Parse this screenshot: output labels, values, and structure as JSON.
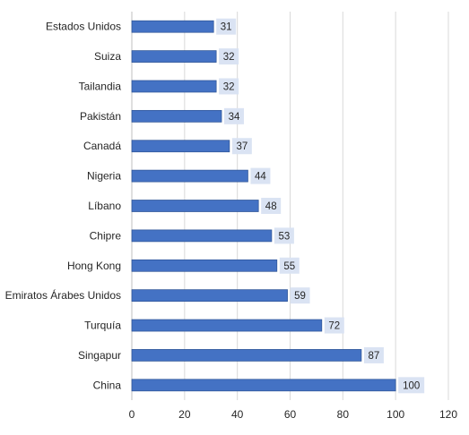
{
  "chart_data": {
    "type": "bar",
    "orientation": "horizontal",
    "categories": [
      "Estados Unidos",
      "Suiza",
      "Tailandia",
      "Pakistán",
      "Canadá",
      "Nigeria",
      "Líbano",
      "Chipre",
      "Hong Kong",
      "Emiratos Árabes Unidos",
      "Turquía",
      "Singapur",
      "China"
    ],
    "values": [
      31,
      32,
      32,
      34,
      37,
      44,
      48,
      53,
      55,
      59,
      72,
      87,
      100
    ],
    "data_labels": [
      "31",
      "32",
      "32",
      "34",
      "37",
      "44",
      "48",
      "53",
      "55",
      "59",
      "72",
      "87",
      "100"
    ],
    "x_ticks": [
      "0",
      "20",
      "40",
      "60",
      "80",
      "100",
      "120"
    ],
    "xlim": [
      0,
      120
    ],
    "grid": "vertical",
    "legend": "none",
    "colors": {
      "bar_fill": "#4472C4",
      "bar_stroke": "#2F5597",
      "label_bg": "#DAE3F3",
      "grid": "#D9D9D9",
      "axis": "#BFBFBF",
      "text": "#262626"
    }
  }
}
